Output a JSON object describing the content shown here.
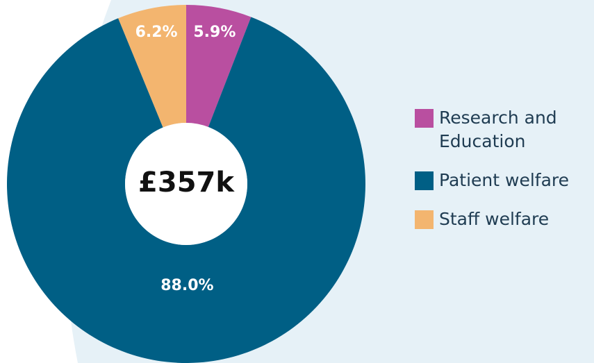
{
  "chart_data": {
    "type": "donut",
    "categories": [
      "Research and Education",
      "Patient welfare",
      "Staff welfare"
    ],
    "values": [
      5.9,
      88.0,
      6.2
    ],
    "value_labels": [
      "5.9%",
      "88.0%",
      "6.2%"
    ],
    "colors": [
      "#b94fa0",
      "#005f85",
      "#f3b56f"
    ],
    "center_label": "£357k"
  }
}
